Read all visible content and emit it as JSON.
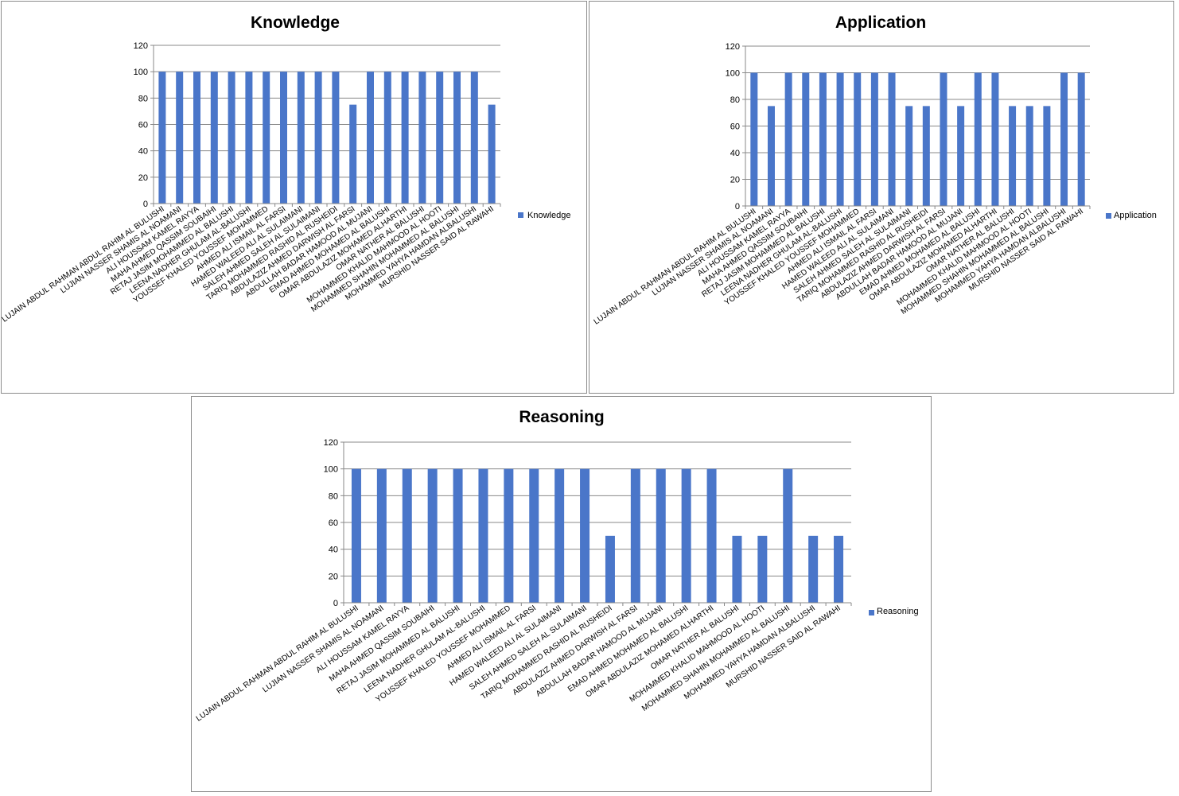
{
  "colors": {
    "bar": "#4a76c9",
    "grid": "#888888",
    "axis": "#888888",
    "border": "#8c8c8c"
  },
  "chart_data": [
    {
      "type": "bar",
      "title": "Knowledge",
      "legend": "right",
      "grid": true,
      "ylim": [
        0,
        120
      ],
      "yticks": [
        0,
        20,
        40,
        60,
        80,
        100,
        120
      ],
      "categories": [
        "LUJAIN ABDUL RAHMAN ABDUL RAHIM AL BULUSHI",
        "LUJIAN NASSER SHAMIS AL NOAMANI",
        "ALI HOUSSAM KAMEL RAYYA",
        "MAHA AHMED QASSIM SOUBAIHI",
        "RETAJ JASIM MOHAMMED AL BALUSHI",
        "LEENA NADHER GHULAM AL-BALUSHI",
        "YOUSSEF KHALED YOUSSEF MOHAMMED",
        "AHMED ALI ISMAIL AL FARSI",
        "HAMED WALEED ALI AL SULAIMANI",
        "SALEH AHMED SALEH AL SULAIMANI",
        "TARIQ MOHAMMED RASHID AL RUSHEIDI",
        "ABDULAZIZ AHMED DARWISH AL FARSI",
        "ABDULLAH BADAR HAMOOD AL MUJANI",
        "EMAD AHMED MOHAMED AL BALUSHI",
        "OMAR ABDULAZIZ MOHAMED ALHARTHI",
        "OMAR NATHER AL BALUSHI",
        "MOHAMMED KHALID MAHMOOD AL HOOTI",
        "MOHAMMED SHAHIN MOHAMMED AL BALUSHI",
        "MOHAMMED YAHYA HAMDAN ALBALUSHI",
        "MURSHID NASSER SAID AL RAWAHI"
      ],
      "series": [
        {
          "name": "Knowledge",
          "values": [
            100,
            100,
            100,
            100,
            100,
            100,
            100,
            100,
            100,
            100,
            100,
            75,
            100,
            100,
            100,
            100,
            100,
            100,
            100,
            75
          ]
        }
      ]
    },
    {
      "type": "bar",
      "title": "Application",
      "legend": "right",
      "grid": true,
      "ylim": [
        0,
        120
      ],
      "yticks": [
        0,
        20,
        40,
        60,
        80,
        100,
        120
      ],
      "categories": [
        "LUJAIN ABDUL RAHMAN ABDUL RAHIM AL BULUSHI",
        "LUJIAN NASSER SHAMIS AL NOAMANI",
        "ALI HOUSSAM KAMEL RAYYA",
        "MAHA AHMED QASSIM SOUBAIHI",
        "RETAJ JASIM MOHAMMED AL BALUSHI",
        "LEENA NADHER GHULAM AL-BALUSHI",
        "YOUSSEF KHALED YOUSSEF MOHAMMED",
        "AHMED ALI ISMAIL AL FARSI",
        "HAMED WALEED ALI AL SULAIMANI",
        "SALEH AHMED SALEH AL SULAIMANI",
        "TARIQ MOHAMMED RASHID AL RUSHEIDI",
        "ABDULAZIZ AHMED DARWISH AL FARSI",
        "ABDULLAH BADAR HAMOOD AL MUJANI",
        "EMAD AHMED MOHAMED AL BALUSHI",
        "OMAR ABDULAZIZ MOHAMED ALHARTHI",
        "OMAR NATHER AL BALUSHI",
        "MOHAMMED KHALID MAHMOOD AL HOOTI",
        "MOHAMMED SHAHIN MOHAMMED AL BALUSHI",
        "MOHAMMED YAHYA HAMDAN ALBALUSHI",
        "MURSHID NASSER SAID AL RAWAHI"
      ],
      "series": [
        {
          "name": "Application",
          "values": [
            100,
            75,
            100,
            100,
            100,
            100,
            100,
            100,
            100,
            75,
            75,
            100,
            75,
            100,
            100,
            75,
            75,
            75,
            100,
            100
          ]
        }
      ]
    },
    {
      "type": "bar",
      "title": "Reasoning",
      "legend": "right",
      "grid": true,
      "ylim": [
        0,
        120
      ],
      "yticks": [
        0,
        20,
        40,
        60,
        80,
        100,
        120
      ],
      "categories": [
        "LUJAIN ABDUL RAHMAN ABDUL RAHIM AL BULUSHI",
        "LUJIAN NASSER SHAMIS AL NOAMANI",
        "ALI HOUSSAM KAMEL RAYYA",
        "MAHA AHMED QASSIM SOUBAIHI",
        "RETAJ JASIM MOHAMMED AL BALUSHI",
        "LEENA NADHER GHULAM AL-BALUSHI",
        "YOUSSEF KHALED YOUSSEF MOHAMMED",
        "AHMED ALI ISMAIL AL FARSI",
        "HAMED WALEED ALI AL SULAIMANI",
        "SALEH AHMED SALEH AL SULAIMANI",
        "TARIQ MOHAMMED RASHID AL RUSHEIDI",
        "ABDULAZIZ AHMED DARWISH AL FARSI",
        "ABDULLAH BADAR HAMOOD AL MUJANI",
        "EMAD AHMED MOHAMED AL BALUSHI",
        "OMAR ABDULAZIZ MOHAMED ALHARTHI",
        "OMAR NATHER AL BALUSHI",
        "MOHAMMED KHALID MAHMOOD AL HOOTI",
        "MOHAMMED SHAHIN MOHAMMED AL BALUSHI",
        "MOHAMMED YAHYA HAMDAN ALBALUSHI",
        "MURSHID NASSER SAID AL RAWAHI"
      ],
      "series": [
        {
          "name": "Reasoning",
          "values": [
            100,
            100,
            100,
            100,
            100,
            100,
            100,
            100,
            100,
            100,
            50,
            100,
            100,
            100,
            100,
            50,
            50,
            100,
            50,
            50
          ]
        }
      ]
    }
  ]
}
